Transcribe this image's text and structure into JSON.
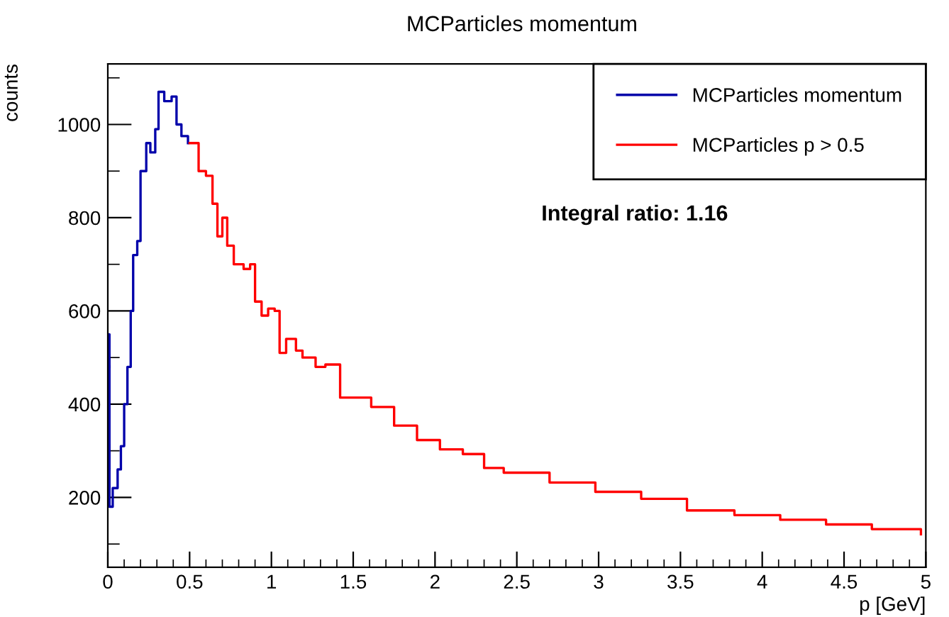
{
  "chart_data": {
    "type": "step",
    "title": "MCParticles momentum",
    "xlabel": "p [GeV]",
    "ylabel": "counts",
    "xlim": [
      0,
      5
    ],
    "xticks": [
      0,
      0.5,
      1,
      1.5,
      2,
      2.5,
      3,
      3.5,
      4,
      4.5,
      5
    ],
    "ylim": [
      50,
      1130
    ],
    "yticks": [
      200,
      400,
      600,
      800,
      1000
    ],
    "grid": false,
    "legend": "top right",
    "annotations": [
      "Integral ratio: 1.16"
    ],
    "series": [
      {
        "name": "MCParticles momentum",
        "color": "#0000aa",
        "x": [
          0,
          0.01,
          0.03,
          0.06,
          0.08,
          0.1,
          0.12,
          0.14,
          0.155,
          0.18,
          0.2,
          0.235,
          0.26,
          0.29,
          0.31,
          0.345,
          0.39,
          0.42,
          0.45,
          0.49
        ],
        "values": [
          550,
          180,
          220,
          260,
          310,
          400,
          480,
          600,
          720,
          750,
          900,
          960,
          940,
          990,
          1070,
          1050,
          1060,
          1000,
          975,
          960
        ]
      },
      {
        "name": "MCParticles p > 0.5",
        "color": "#ff0000",
        "x": [
          0.5,
          0.555,
          0.6,
          0.64,
          0.67,
          0.7,
          0.73,
          0.77,
          0.83,
          0.87,
          0.9,
          0.94,
          0.98,
          1.02,
          1.05,
          1.09,
          1.15,
          1.19,
          1.27,
          1.33,
          1.42,
          1.61,
          1.75,
          1.89,
          2.03,
          2.17,
          2.3,
          2.42,
          2.7,
          2.98,
          3.26,
          3.54,
          3.83,
          4.11,
          4.39,
          4.67,
          4.97
        ],
        "values": [
          960,
          900,
          890,
          830,
          760,
          800,
          740,
          700,
          690,
          700,
          620,
          590,
          605,
          600,
          510,
          540,
          515,
          500,
          480,
          485,
          414,
          394,
          354,
          323,
          303,
          293,
          263,
          253,
          232,
          212,
          197,
          172,
          162,
          152,
          142,
          132,
          121
        ]
      }
    ]
  }
}
